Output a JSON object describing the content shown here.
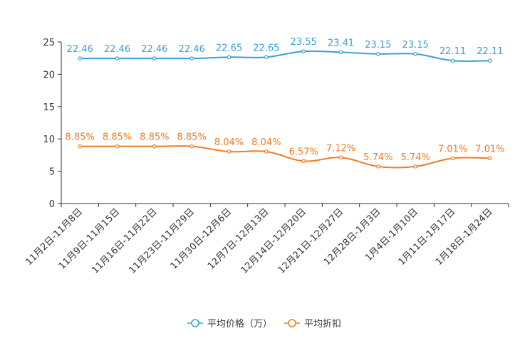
{
  "chart_data": {
    "type": "line",
    "title": "",
    "xlabel": "",
    "ylabel": "",
    "ylim": [
      0,
      25
    ],
    "yticks": [
      0,
      5,
      10,
      15,
      20,
      25
    ],
    "grid": false,
    "legend_position": "bottom",
    "categories": [
      "11月2日-11月8日",
      "11月9日-11月15日",
      "11月16日-11月22日",
      "11月23日-11月29日",
      "11月30日-12月6日",
      "12月7日-12月13日",
      "12月14日-12月20日",
      "12月21日-12月27日",
      "12月28日-1月3日",
      "1月4日-1月10日",
      "1月11日-1月17日",
      "1月18日-1月24日"
    ],
    "series": [
      {
        "name": "平均价格（万）",
        "color": "#3a9fd5",
        "values": [
          22.46,
          22.46,
          22.46,
          22.46,
          22.65,
          22.65,
          23.55,
          23.41,
          23.15,
          23.15,
          22.11,
          22.11
        ],
        "labels": [
          "22.46",
          "22.46",
          "22.46",
          "22.46",
          "22.65",
          "22.65",
          "23.55",
          "23.41",
          "23.15",
          "23.15",
          "22.11",
          "22.11"
        ]
      },
      {
        "name": "平均折扣",
        "color": "#f07c21",
        "values": [
          8.85,
          8.85,
          8.85,
          8.85,
          8.04,
          8.04,
          6.57,
          7.12,
          5.74,
          5.74,
          7.01,
          7.01
        ],
        "labels": [
          "8.85%",
          "8.85%",
          "8.85%",
          "8.85%",
          "8.04%",
          "8.04%",
          "6.57%",
          "7.12%",
          "5.74%",
          "5.74%",
          "7.01%",
          "7.01%"
        ]
      }
    ]
  }
}
